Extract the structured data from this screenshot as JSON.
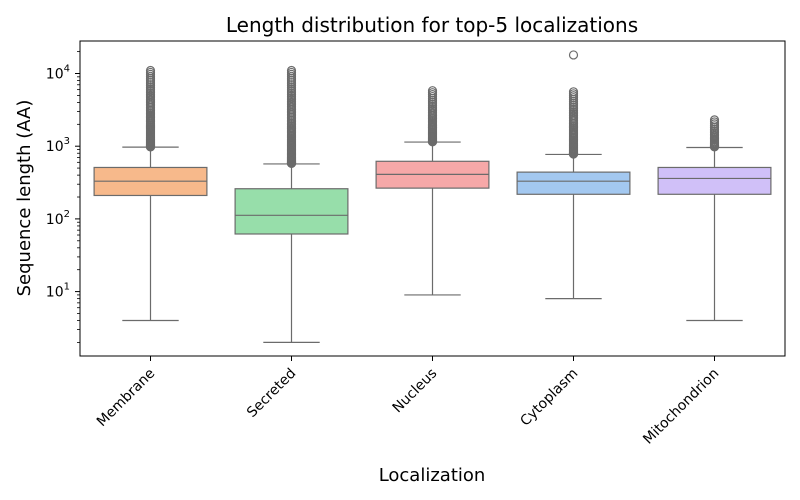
{
  "chart_data": {
    "type": "box",
    "title": "Length distribution for top-5 localizations",
    "xlabel": "Localization",
    "ylabel": "Sequence length (AA)",
    "yscale": "log",
    "ylim": [
      1.3,
      28000
    ],
    "y_ticks": [
      {
        "value": 10,
        "base": "10",
        "exp": "1"
      },
      {
        "value": 100,
        "base": "10",
        "exp": "2"
      },
      {
        "value": 1000,
        "base": "10",
        "exp": "3"
      },
      {
        "value": 10000,
        "base": "10",
        "exp": "4"
      }
    ],
    "grid": false,
    "legend": "none",
    "categories": [
      "Membrane",
      "Secreted",
      "Nucleus",
      "Cytoplasm",
      "Mitochondrion"
    ],
    "boxes": [
      {
        "name": "Membrane",
        "whisker_low": 4,
        "q1": 210,
        "median": 330,
        "q3": 510,
        "whisker_high": 970,
        "outliers_range": [
          980,
          11000
        ],
        "color": "#f7b98b"
      },
      {
        "name": "Secreted",
        "whisker_low": 2,
        "q1": 62,
        "median": 112,
        "q3": 260,
        "whisker_high": 570,
        "outliers_range": [
          580,
          11000
        ],
        "color": "#97deaa"
      },
      {
        "name": "Nucleus",
        "whisker_low": 9,
        "q1": 265,
        "median": 410,
        "q3": 620,
        "whisker_high": 1140,
        "outliers_range": [
          1150,
          5800
        ],
        "color": "#f6a8a8"
      },
      {
        "name": "Cytoplasm",
        "whisker_low": 8,
        "q1": 218,
        "median": 330,
        "q3": 440,
        "whisker_high": 770,
        "outliers_range": [
          780,
          5600
        ],
        "extreme_outliers": [
          18000
        ],
        "color": "#a3c8f0"
      },
      {
        "name": "Mitochondrion",
        "whisker_low": 4,
        "q1": 218,
        "median": 360,
        "q3": 510,
        "whisker_high": 960,
        "outliers_range": [
          980,
          2300
        ],
        "color": "#d0c0f8"
      }
    ],
    "colors": {
      "box_edge": "#6b6b6b",
      "outlier": "#6b6b6b",
      "axis": "#000000"
    }
  }
}
